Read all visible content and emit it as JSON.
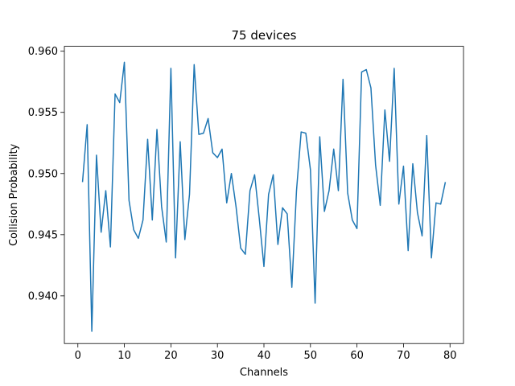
{
  "chart_data": {
    "type": "line",
    "title": "75 devices",
    "xlabel": "Channels",
    "ylabel": "Collision Probability",
    "xlim": [
      -2.9,
      82.9
    ],
    "ylim": [
      0.9361,
      0.9604
    ],
    "xticks": [
      0,
      10,
      20,
      30,
      40,
      50,
      60,
      70,
      80
    ],
    "xtick_labels": [
      "0",
      "10",
      "20",
      "30",
      "40",
      "50",
      "60",
      "70",
      "80"
    ],
    "yticks": [
      0.94,
      0.945,
      0.95,
      0.955,
      0.96
    ],
    "ytick_labels": [
      "0.940",
      "0.945",
      "0.950",
      "0.955",
      "0.960"
    ],
    "grid": false,
    "series": [
      {
        "color": "#1f77b4",
        "x": [
          1,
          2,
          3,
          4,
          5,
          6,
          7,
          8,
          9,
          10,
          11,
          12,
          13,
          14,
          15,
          16,
          17,
          18,
          19,
          20,
          21,
          22,
          23,
          24,
          25,
          26,
          27,
          28,
          29,
          30,
          31,
          32,
          33,
          34,
          35,
          36,
          37,
          38,
          39,
          40,
          41,
          42,
          43,
          44,
          45,
          46,
          47,
          48,
          49,
          50,
          51,
          52,
          53,
          54,
          55,
          56,
          57,
          58,
          59,
          60,
          61,
          62,
          63,
          64,
          65,
          66,
          67,
          68,
          69,
          70,
          71,
          72,
          73,
          74,
          75,
          76,
          77,
          78,
          79
        ],
        "values": [
          0.9493,
          0.954,
          0.9371,
          0.9515,
          0.9452,
          0.9486,
          0.944,
          0.9565,
          0.9558,
          0.9591,
          0.9478,
          0.9454,
          0.9447,
          0.9462,
          0.9528,
          0.9462,
          0.9536,
          0.9473,
          0.9444,
          0.9586,
          0.9431,
          0.9526,
          0.9446,
          0.9483,
          0.9589,
          0.9532,
          0.9533,
          0.9545,
          0.9517,
          0.9513,
          0.952,
          0.9476,
          0.95,
          0.9473,
          0.9439,
          0.9434,
          0.9486,
          0.9499,
          0.9463,
          0.9424,
          0.9483,
          0.9499,
          0.9442,
          0.9472,
          0.9467,
          0.9407,
          0.9486,
          0.9534,
          0.9533,
          0.9503,
          0.9394,
          0.953,
          0.9469,
          0.9486,
          0.952,
          0.9486,
          0.9577,
          0.9484,
          0.9462,
          0.9455,
          0.9583,
          0.9585,
          0.957,
          0.9507,
          0.9474,
          0.9552,
          0.951,
          0.9586,
          0.9475,
          0.9506,
          0.9437,
          0.9508,
          0.9468,
          0.9449,
          0.9531,
          0.9431,
          0.9476,
          0.9475,
          0.9493
        ]
      }
    ]
  }
}
